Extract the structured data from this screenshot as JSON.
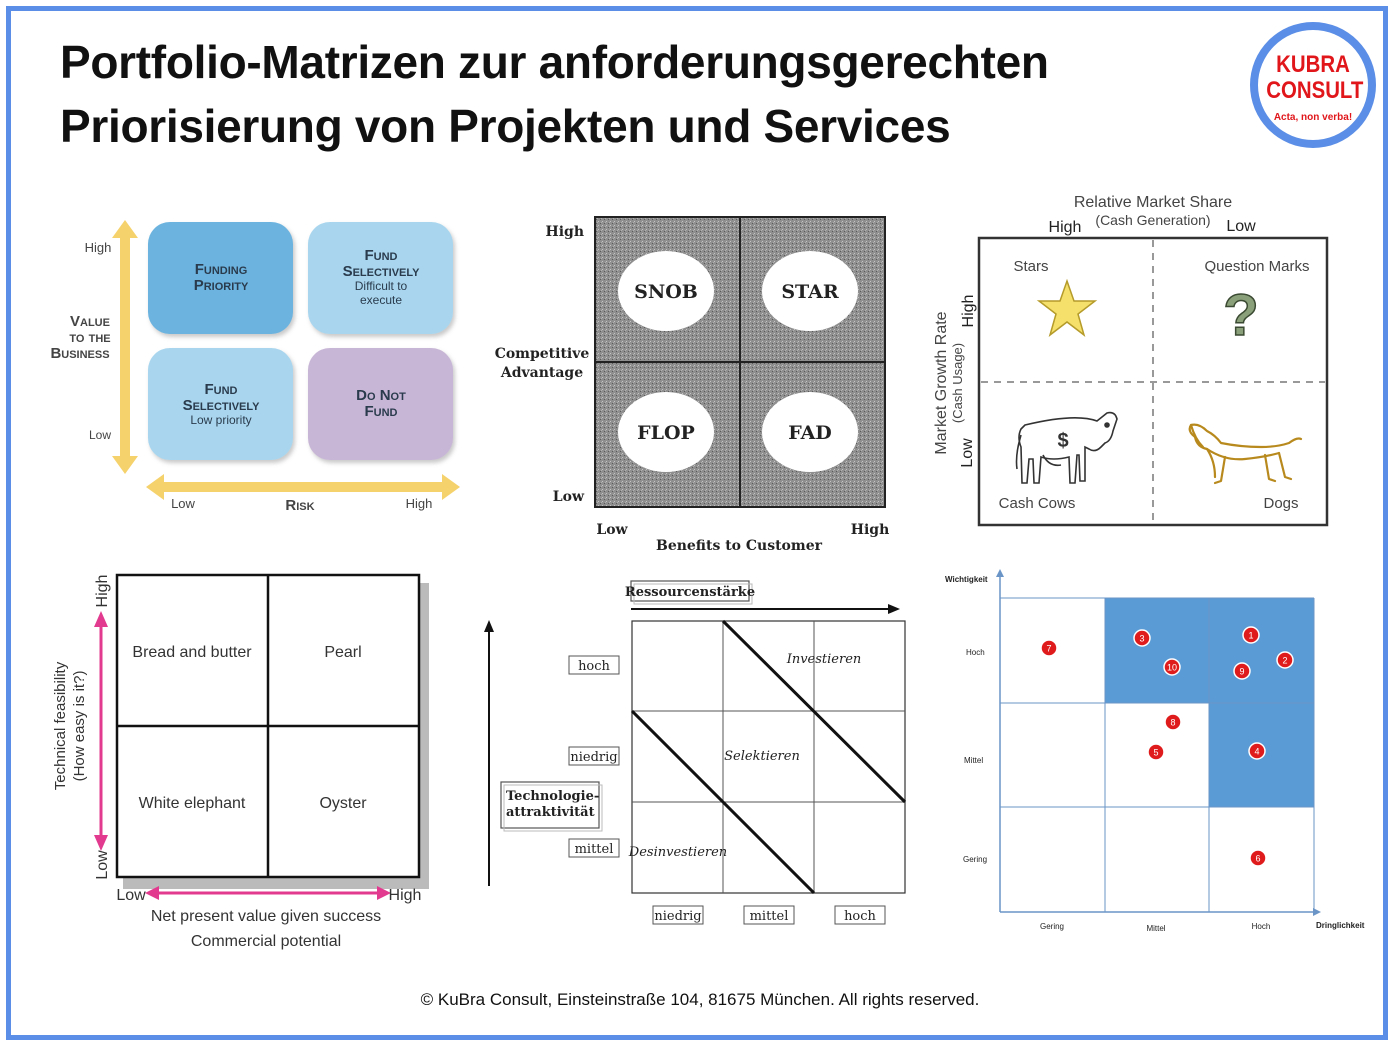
{
  "title": {
    "line1": "Portfolio-Matrizen zur anforderungsgerechten",
    "line2": "Priorisierung von Projekten und Services"
  },
  "logo": {
    "line1": "KUBRA",
    "line2": "CONSULT",
    "tagline": "Acta, non verba!"
  },
  "footer": "© KuBra Consult, Einsteinstraße 104, 81675 München. All rights reserved.",
  "colors": {
    "border": "#5b8ee6",
    "logo_red": "#e0161b",
    "tile_blue": "#6cb4df",
    "tile_light": "#a9d6ee",
    "tile_purple": "#c8b6d6",
    "arrow_yellow": "#f5d26c",
    "highlight_blue": "#5b9bd5",
    "dot_red": "#e01b1b"
  },
  "matrix1": {
    "y_high": "High",
    "y_low": "Low",
    "y_axis_label": [
      "Value",
      "to the",
      "Business"
    ],
    "x_low": "Low",
    "x_high": "High",
    "x_axis_label": "Risk",
    "tiles": {
      "top_left": {
        "title1": "Funding",
        "title2": "Priority"
      },
      "top_right": {
        "title1": "Fund",
        "title2": "Selectively",
        "sub1": "Difficult to",
        "sub2": "execute"
      },
      "bottom_left": {
        "title1": "Fund",
        "title2": "Selectively",
        "sub1": "Low priority"
      },
      "bottom_right": {
        "title1": "Do Not",
        "title2": "Fund"
      }
    }
  },
  "matrix2": {
    "y_high": "High",
    "y_low": "Low",
    "y_axis_label": [
      "Competitive",
      "Advantage"
    ],
    "x_low": "Low",
    "x_high": "High",
    "x_axis_label": "Benefits to Customer",
    "cells": {
      "top_left": "SNOB",
      "top_right": "STAR",
      "bottom_left": "FLOP",
      "bottom_right": "FAD"
    }
  },
  "matrix3": {
    "top_title": "Relative Market Share",
    "top_sub": "(Cash Generation)",
    "x_high": "High",
    "x_low": "Low",
    "y_axis_label": "Market Growth Rate",
    "y_axis_sub": "(Cash Usage)",
    "y_high": "High",
    "y_low": "Low",
    "quadrants": {
      "top_left": "Stars",
      "top_right": "Question Marks",
      "bottom_left": "Cash Cows",
      "bottom_right": "Dogs"
    },
    "question_glyph": "?",
    "dollar_glyph": "$"
  },
  "matrix4": {
    "y_high": "High",
    "y_low": "Low",
    "y_axis_label": "Technical feasibility",
    "y_axis_sub": "(How easy is it?)",
    "x_low": "Low",
    "x_high": "High",
    "x_axis_label": "Net present value given success",
    "x_axis_sub": "Commercial potential",
    "cells": {
      "top_left": "Bread and butter",
      "top_right": "Pearl",
      "bottom_left": "White elephant",
      "bottom_right": "Oyster"
    }
  },
  "matrix5": {
    "top_label": "Ressourcenstärke",
    "y_label1": "Technologie-",
    "y_label2": "attraktivität",
    "rows": [
      "hoch",
      "niedrig",
      "mittel"
    ],
    "cols": [
      "niedrig",
      "mittel",
      "hoch"
    ],
    "zones": {
      "top": "Investieren",
      "middle": "Selektieren",
      "bottom": "Desinvestieren"
    }
  },
  "matrix6": {
    "y_axis_label": "Wichtigkeit",
    "x_axis_label": "Dringlichkeit",
    "rows": [
      "Hoch",
      "Mittel",
      "Gering"
    ],
    "cols": [
      "Gering",
      "Mittel",
      "Hoch"
    ],
    "points": [
      {
        "label": "1",
        "x_level": "Hoch",
        "y_level": "Hoch"
      },
      {
        "label": "2",
        "x_level": "Hoch",
        "y_level": "Hoch"
      },
      {
        "label": "3",
        "x_level": "Mittel",
        "y_level": "Hoch"
      },
      {
        "label": "4",
        "x_level": "Hoch",
        "y_level": "Mittel"
      },
      {
        "label": "5",
        "x_level": "Mittel",
        "y_level": "Mittel"
      },
      {
        "label": "6",
        "x_level": "Hoch",
        "y_level": "Gering"
      },
      {
        "label": "7",
        "x_level": "Gering",
        "y_level": "Hoch"
      },
      {
        "label": "8",
        "x_level": "Mittel",
        "y_level": "Mittel"
      },
      {
        "label": "9",
        "x_level": "Hoch",
        "y_level": "Hoch"
      },
      {
        "label": "10",
        "x_level": "Mittel",
        "y_level": "Hoch"
      }
    ]
  }
}
